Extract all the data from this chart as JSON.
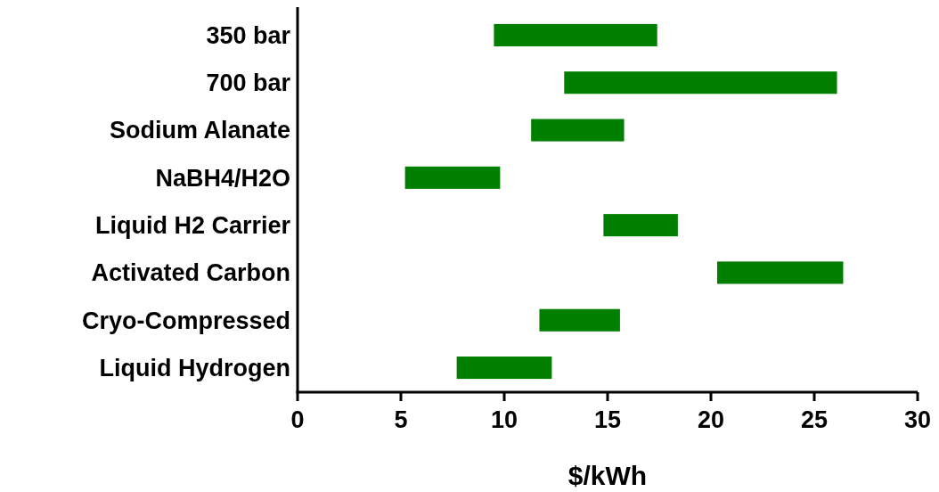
{
  "chart_data": {
    "type": "bar",
    "orientation": "horizontal",
    "xlabel": "$/kWh",
    "categories": [
      "350 bar",
      "700 bar",
      "Sodium Alanate",
      "NaBH4/H2O",
      "Liquid H2 Carrier",
      "Activated Carbon",
      "Cryo-Compressed",
      "Liquid Hydrogen"
    ],
    "base": [
      9.5,
      12.9,
      11.3,
      5.2,
      14.8,
      20.3,
      11.7,
      7.7
    ],
    "values": [
      7.9,
      13.2,
      4.5,
      4.6,
      3.6,
      6.1,
      3.9,
      4.6
    ],
    "color": "#007f00",
    "xlim": [
      0,
      30
    ],
    "xticks": [
      0,
      5,
      10,
      15,
      20,
      25,
      30
    ],
    "grid": false
  }
}
